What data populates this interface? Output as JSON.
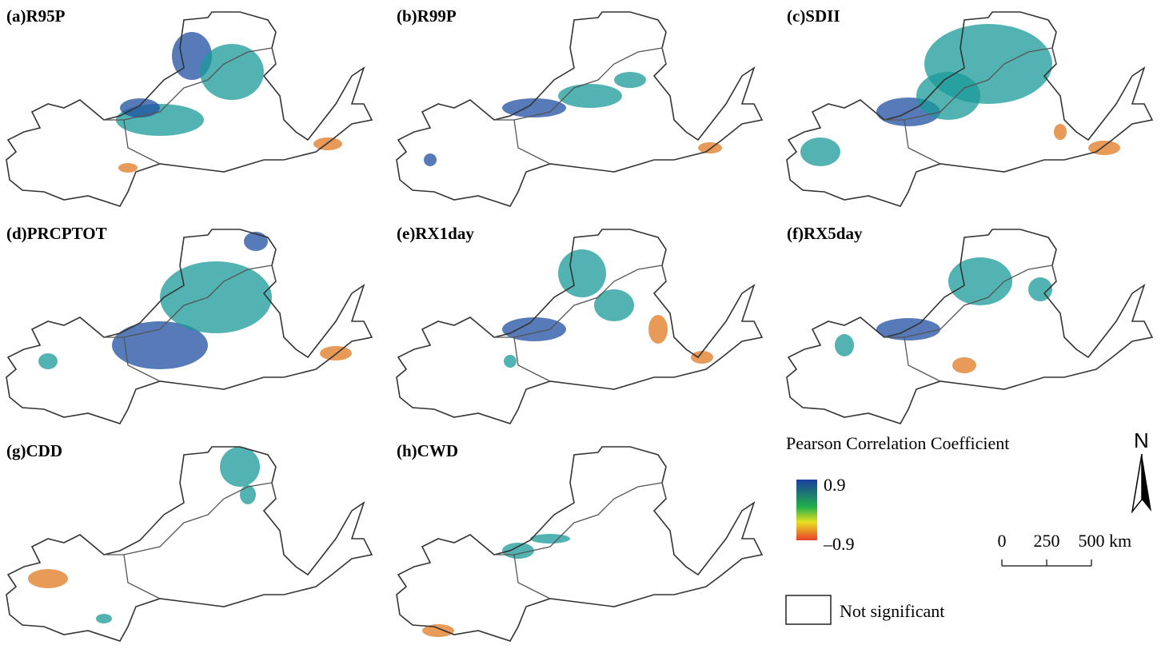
{
  "panels": [
    {
      "label": "(a)R95P"
    },
    {
      "label": "(b)R99P"
    },
    {
      "label": "(c)SDII"
    },
    {
      "label": "(d)PRCPTOT"
    },
    {
      "label": "(e)RX1day"
    },
    {
      "label": "(f)RX5day"
    },
    {
      "label": "(g)CDD"
    },
    {
      "label": "(h)CWD"
    }
  ],
  "legend": {
    "title": "Pearson Correlation Coefficient",
    "colorbar_ticks": [
      0.9,
      {
        "value": -0.9,
        "label": "–0.9"
      }
    ],
    "not_significant": "Not significant"
  },
  "north": "N",
  "scale_bar": {
    "ticks": [
      0,
      250,
      500
    ],
    "unit": "km"
  }
}
